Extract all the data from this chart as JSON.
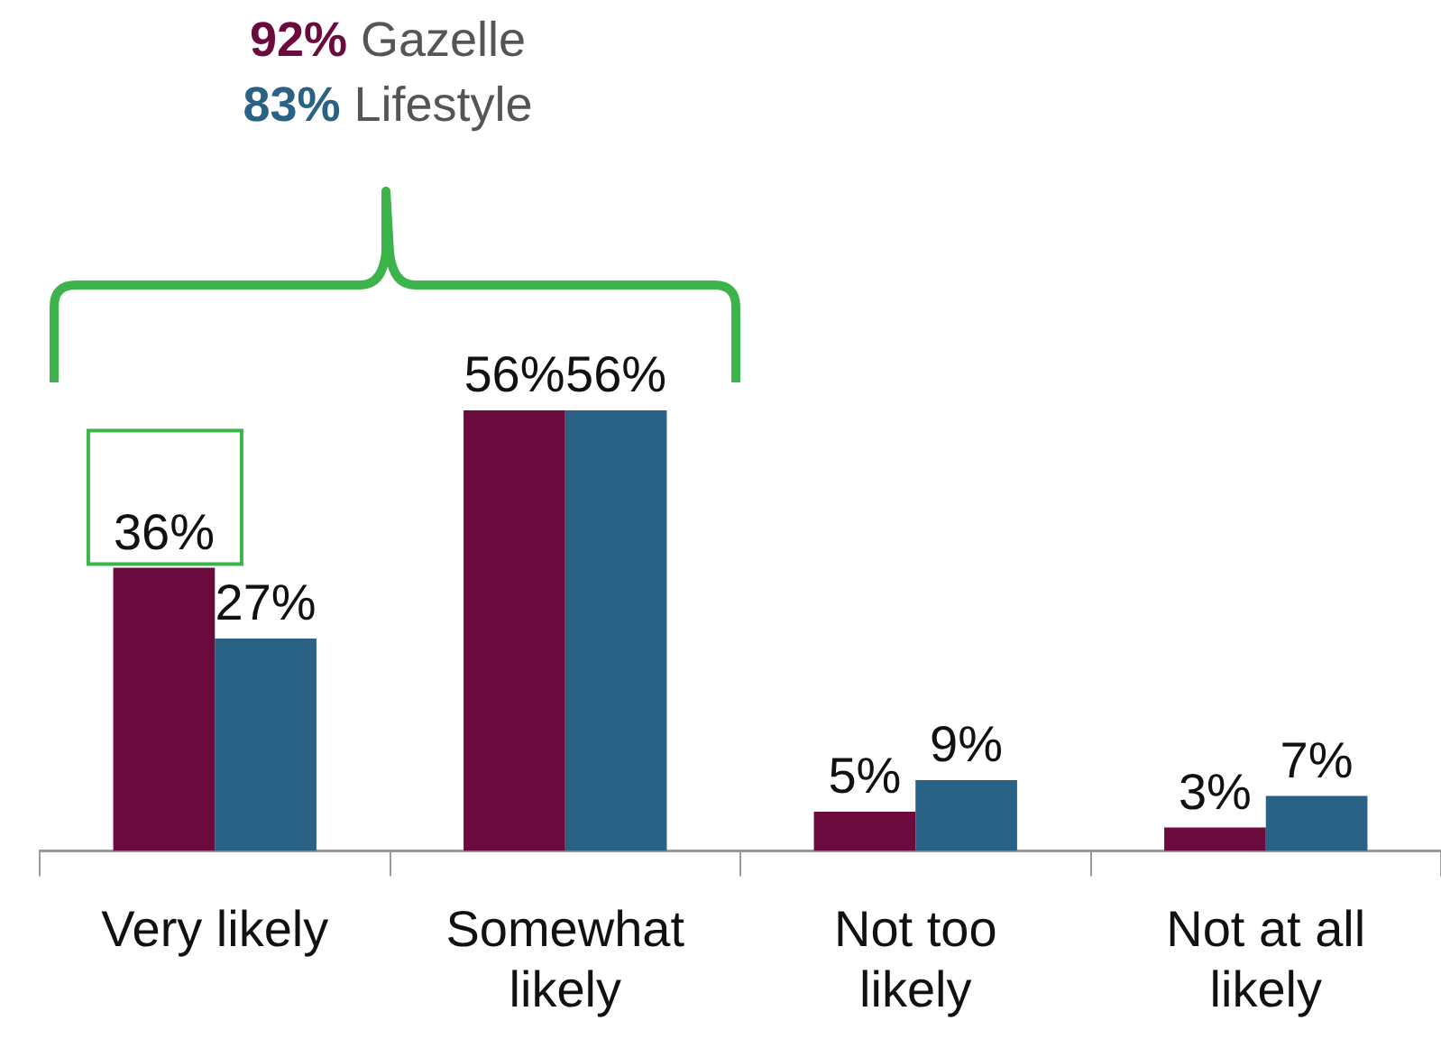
{
  "chart_data": {
    "type": "bar",
    "categories": [
      "Very likely",
      "Somewhat likely",
      "Not too likely",
      "Not at all likely"
    ],
    "series": [
      {
        "color": "#6b0a3d",
        "values": [
          36,
          56,
          5,
          3
        ],
        "value_labels": [
          "36%",
          "56%",
          "5%",
          "3%"
        ]
      },
      {
        "color": "#2a6286",
        "values": [
          27,
          56,
          9,
          7
        ],
        "value_labels": [
          "27%",
          "56%",
          "9%",
          "7%"
        ]
      }
    ],
    "tick_labels": "x",
    "grid": false,
    "legend": false,
    "annotations": [
      "92% Gazelle",
      "83% Lifestyle"
    ]
  }
}
